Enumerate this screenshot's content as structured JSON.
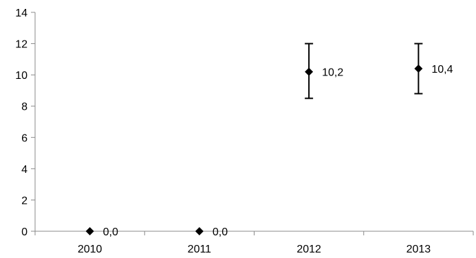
{
  "chart_data": {
    "type": "scatter",
    "categories": [
      "2010",
      "2011",
      "2012",
      "2013"
    ],
    "values": [
      0.0,
      0.0,
      10.2,
      10.4
    ],
    "error_bars": [
      {
        "low": 0.0,
        "high": 0.0
      },
      {
        "low": 0.0,
        "high": 0.0
      },
      {
        "low": 8.5,
        "high": 12.0
      },
      {
        "low": 8.8,
        "high": 12.0
      }
    ],
    "data_labels": [
      "0,0",
      "0,0",
      "10,2",
      "10,4"
    ],
    "y_ticks": [
      "0",
      "2",
      "4",
      "6",
      "8",
      "10",
      "12",
      "14"
    ],
    "ylim": [
      0,
      14
    ],
    "marker": "diamond",
    "grid": false,
    "colors": {
      "marker": "#000000",
      "axis": "#888888",
      "text": "#000000"
    }
  }
}
